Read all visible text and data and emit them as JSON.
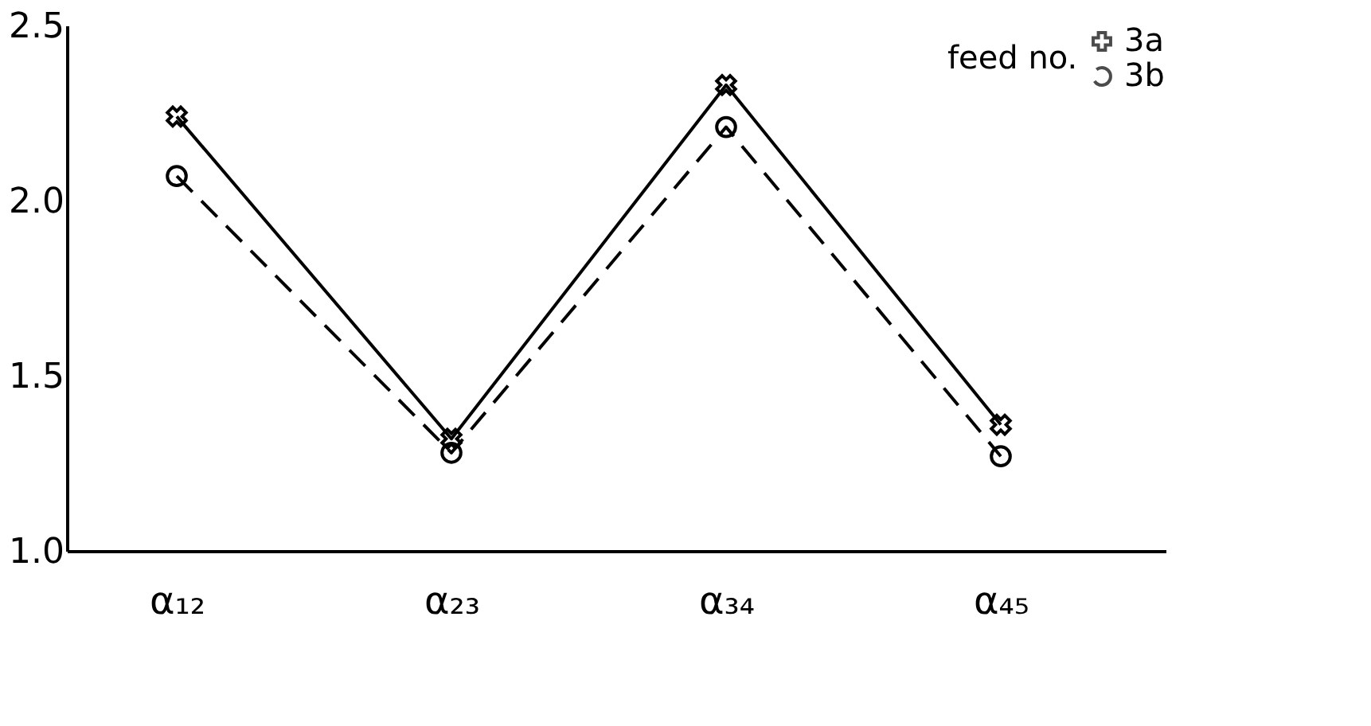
{
  "chart_data": {
    "type": "line",
    "categories": [
      "α₁₂",
      "α₂₃",
      "α₃₄",
      "α₄₅"
    ],
    "series": [
      {
        "name": "3a",
        "color": "#000000",
        "marker": "cross",
        "line_style": "solid",
        "values": [
          2.24,
          1.32,
          2.33,
          1.36
        ]
      },
      {
        "name": "3b",
        "color": "#000000",
        "marker": "circle",
        "line_style": "dashed",
        "values": [
          2.07,
          1.28,
          2.21,
          1.27
        ]
      }
    ],
    "legend_title": "feed no.",
    "legend": "top right",
    "grid": false,
    "ylim": [
      1.0,
      2.5
    ],
    "yticks": [
      {
        "value": 1.0,
        "label": "1.0"
      },
      {
        "value": 1.5,
        "label": "1.5"
      },
      {
        "value": 2.0,
        "label": "2.0"
      },
      {
        "value": 2.5,
        "label": "2.5"
      }
    ]
  }
}
